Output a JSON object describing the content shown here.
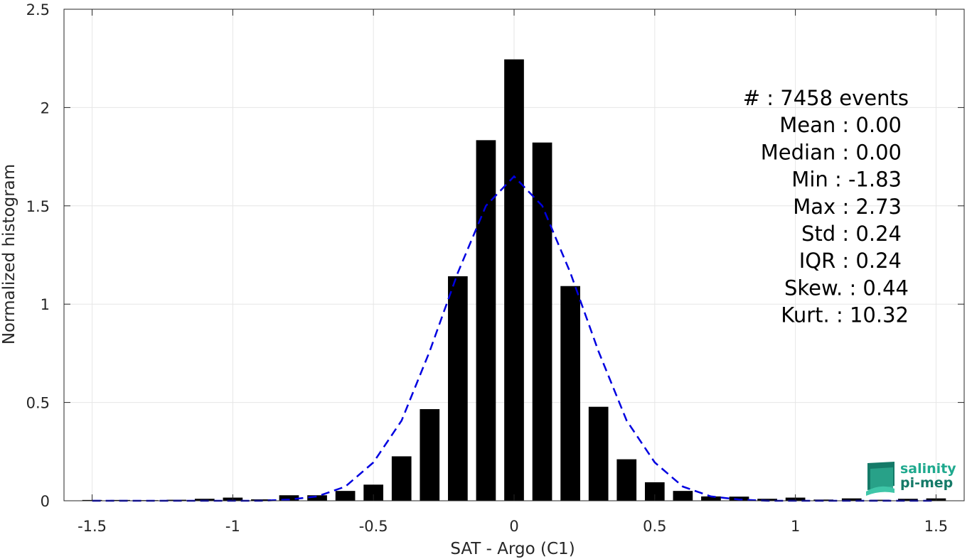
{
  "chart_data": {
    "type": "bar",
    "xlabel": "SAT - Argo (C1)",
    "ylabel": "Normalized histogram",
    "xlim": [
      -1.6,
      1.6
    ],
    "ylim": [
      0,
      2.5
    ],
    "xticks": [
      -1.5,
      -1,
      -0.5,
      0,
      0.5,
      1,
      1.5
    ],
    "xtick_labels": [
      "-1.5",
      "-1",
      "-0.5",
      "0",
      "0.5",
      "1",
      "1.5"
    ],
    "yticks": [
      0,
      0.5,
      1,
      1.5,
      2,
      2.5
    ],
    "ytick_labels": [
      "0",
      "0.5",
      "1",
      "1.5",
      "2",
      "2.5"
    ],
    "grid": true,
    "bar_width": 0.07,
    "bar_color": "#000000",
    "histogram": {
      "x": [
        -1.5,
        -1.4,
        -1.3,
        -1.2,
        -1.1,
        -1.0,
        -0.9,
        -0.8,
        -0.7,
        -0.6,
        -0.5,
        -0.4,
        -0.3,
        -0.2,
        -0.1,
        0.0,
        0.1,
        0.2,
        0.3,
        0.4,
        0.5,
        0.6,
        0.7,
        0.8,
        0.9,
        1.0,
        1.1,
        1.2,
        1.3,
        1.4,
        1.5
      ],
      "values": [
        0.004,
        0.004,
        0.003,
        0.005,
        0.01,
        0.016,
        0.007,
        0.028,
        0.028,
        0.05,
        0.082,
        0.226,
        0.466,
        1.142,
        1.834,
        2.245,
        1.822,
        1.092,
        0.478,
        0.211,
        0.094,
        0.05,
        0.022,
        0.021,
        0.01,
        0.016,
        0.006,
        0.012,
        0.005,
        0.01,
        0.012
      ]
    },
    "fit_curve": {
      "style": "dashed",
      "color": "#0000e0",
      "x": [
        -1.5,
        -1.4,
        -1.3,
        -1.2,
        -1.1,
        -1.0,
        -0.9,
        -0.8,
        -0.7,
        -0.6,
        -0.5,
        -0.4,
        -0.3,
        -0.2,
        -0.1,
        0.0,
        0.1,
        0.2,
        0.3,
        0.4,
        0.5,
        0.6,
        0.7,
        0.8,
        0.9,
        1.0,
        1.1,
        1.2,
        1.3,
        1.4,
        1.5
      ],
      "values": [
        0.0,
        0.0,
        0.0,
        0.0,
        0.0,
        0.0,
        0.0,
        0.006,
        0.022,
        0.072,
        0.195,
        0.408,
        0.76,
        1.16,
        1.5,
        1.65,
        1.5,
        1.16,
        0.76,
        0.408,
        0.195,
        0.072,
        0.022,
        0.006,
        0.0,
        0.0,
        0.0,
        0.0,
        0.0,
        0.0,
        0.0
      ]
    },
    "stats_text": [
      "#  : 7458 events",
      "Mean : 0.00",
      "Median : 0.00",
      "Min : -1.83",
      "Max : 2.73",
      "Std : 0.24",
      "IQR : 0.24",
      "Skew. : 0.44",
      "Kurt. : 10.32"
    ]
  },
  "logo": {
    "line1": "salinity",
    "line2": "pi-mep",
    "colors": [
      "#3fc6a8",
      "#2aa58c",
      "#157a68"
    ]
  }
}
